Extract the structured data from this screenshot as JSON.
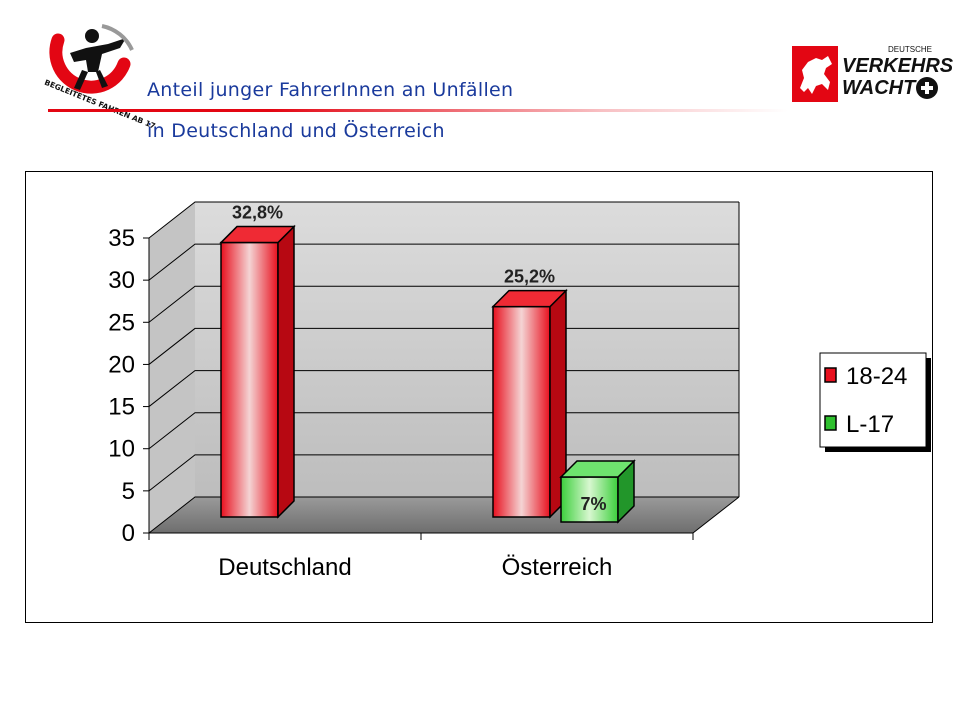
{
  "header": {
    "title_line1": "Anteil junger FahrerInnen an Unfällen",
    "title_line2": "in Deutschland und Österreich",
    "title_color": "#1a3a9c",
    "accent_color": "#e30613"
  },
  "logos": {
    "left": {
      "text": "BEGLEITETES FAHREN AB 17"
    },
    "right": {
      "text_small": "DEUTSCHE",
      "text_line1": "VERKEHRS",
      "text_line2": "WACHT"
    }
  },
  "chart_data": {
    "type": "bar",
    "categories": [
      "Deutschland",
      "Österreich"
    ],
    "series": [
      {
        "name": "18-24",
        "values": [
          32.8,
          25.2
        ],
        "labels": [
          "32,8%",
          "25,2%"
        ],
        "color": "#e8101e"
      },
      {
        "name": "L-17",
        "values": [
          null,
          7
        ],
        "labels": [
          "",
          "7%"
        ],
        "color": "#2ec02e"
      }
    ],
    "y_ticks": [
      "0",
      "5",
      "10",
      "15",
      "20",
      "25",
      "30",
      "35"
    ],
    "ylim": [
      0,
      35
    ],
    "grid": true,
    "legend": "right"
  }
}
